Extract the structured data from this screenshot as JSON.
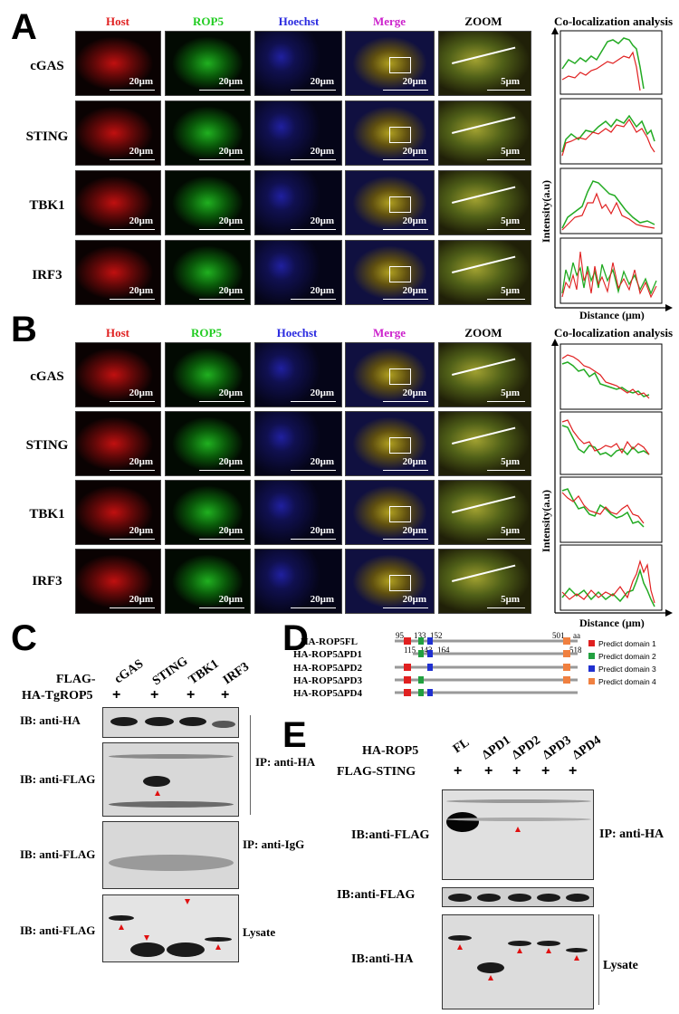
{
  "panel_labels": {
    "A": "A",
    "B": "B",
    "C": "C",
    "D": "D",
    "E": "E"
  },
  "colors": {
    "host": "#e02020",
    "rop5": "#22cc22",
    "hoechst": "#2a2ae0",
    "merge": "#cc22cc"
  },
  "panelA": {
    "columns": [
      "Host",
      "ROP5",
      "Hoechst",
      "Merge",
      "ZOOM"
    ],
    "coloc_title": "Co-localization analysis",
    "rows": [
      "cGAS",
      "STING",
      "TBK1",
      "IRF3"
    ],
    "scale_main": "20μm",
    "scale_zoom": "5μm",
    "y_label": "Intensity(a.u)",
    "x_label": "Distance (μm)"
  },
  "panelB": {
    "columns": [
      "Host",
      "ROP5",
      "Hoechst",
      "Merge",
      "ZOOM"
    ],
    "coloc_title": "Co-localization analysis",
    "rows": [
      "cGAS",
      "STING",
      "TBK1",
      "IRF3"
    ],
    "scale_main": "20μm",
    "scale_zoom": "5μm",
    "y_label": "Intensity(a.u)",
    "x_label": "Distance (μm)"
  },
  "panelC": {
    "lanes": [
      "cGAS",
      "STING",
      "TBK1",
      "IRF3"
    ],
    "row1_label": "FLAG-",
    "row2_label": "HA-TgROP5",
    "plus": "+",
    "blots": [
      {
        "label": "IB: anti-HA"
      },
      {
        "label": "IB: anti-FLAG"
      },
      {
        "label": "IB: anti-FLAG"
      },
      {
        "label": "IB: anti-FLAG"
      }
    ],
    "ip_ha": "IP: anti-HA",
    "ip_igg": "IP: anti-IgG",
    "lysate": "Lysate"
  },
  "panelD": {
    "constructs": [
      "HA-ROP5FL",
      "HA-ROP5ΔPD1",
      "HA-ROP5ΔPD2",
      "HA-ROP5ΔPD3",
      "HA-ROP5ΔPD4"
    ],
    "fl_positions": [
      "95",
      "133",
      "152",
      "501",
      "aa"
    ],
    "pd1_positions": [
      "115",
      "143",
      "164",
      "518"
    ],
    "legend": [
      "Predict domain 1",
      "Predict domain 2",
      "Predict domain 3",
      "Predict domain 4"
    ],
    "legend_colors": [
      "#e02020",
      "#22a040",
      "#2030d0",
      "#f08040"
    ]
  },
  "panelE": {
    "ha_label": "HA-ROP5",
    "flag_label": "FLAG-STING",
    "lanes": [
      "FL",
      "ΔPD1",
      "ΔPD2",
      "ΔPD3",
      "ΔPD4"
    ],
    "plus": "+",
    "blots": [
      {
        "label": "IB:anti-FLAG"
      },
      {
        "label": "IB:anti-FLAG"
      },
      {
        "label": "IB:anti-HA"
      }
    ],
    "ip_ha": "IP: anti-HA",
    "lysate": "Lysate"
  }
}
